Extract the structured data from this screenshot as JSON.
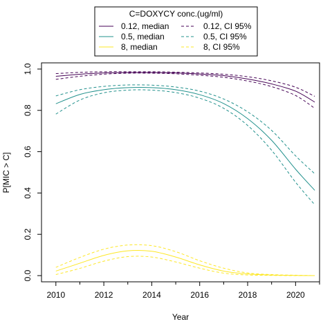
{
  "chart_data": {
    "type": "line",
    "xlabel": "Year",
    "ylabel": "P[MIC > C]",
    "xlim": [
      2009.4,
      2021.0
    ],
    "ylim": [
      -0.03,
      1.03
    ],
    "x_ticks": [
      2010,
      2012,
      2014,
      2016,
      2018,
      2020
    ],
    "x_ticks_labels": [
      "2010",
      "2012",
      "2014",
      "2016",
      "2018",
      "2020"
    ],
    "y_ticks": [
      0.0,
      0.2,
      0.4,
      0.6,
      0.8,
      1.0
    ],
    "y_ticks_labels": [
      "0.0",
      "0.2",
      "0.4",
      "0.6",
      "0.8",
      "1.0"
    ],
    "grid": false,
    "legend": {
      "title": "C=DOXYCY conc.(ug/ml)",
      "placement": "top",
      "entries": [
        {
          "label": "0.12, median",
          "color": "#440154",
          "dash": false
        },
        {
          "label": "0.12, CI 95%",
          "color": "#440154",
          "dash": true
        },
        {
          "label": "0.5, median",
          "color": "#21908C",
          "dash": false
        },
        {
          "label": "0.5, CI 95%",
          "color": "#21908C",
          "dash": true
        },
        {
          "label": "8, median",
          "color": "#FDE725",
          "dash": false
        },
        {
          "label": "8, CI 95%",
          "color": "#FDE725",
          "dash": true
        }
      ]
    },
    "x": [
      2010,
      2011,
      2012,
      2013,
      2014,
      2015,
      2016,
      2017,
      2018,
      2019,
      2020,
      2020.8
    ],
    "series": [
      {
        "name": "0.12, median",
        "color": "#440154",
        "dash": false,
        "values": [
          0.965,
          0.975,
          0.981,
          0.983,
          0.983,
          0.981,
          0.976,
          0.968,
          0.952,
          0.928,
          0.893,
          0.84
        ]
      },
      {
        "name": "0.12, CI 95%",
        "color": "#440154",
        "dash": true,
        "values": [
          0.95,
          0.965,
          0.975,
          0.98,
          0.98,
          0.977,
          0.97,
          0.96,
          0.942,
          0.915,
          0.872,
          0.81
        ]
      },
      {
        "name": "0.12, CI 95%",
        "color": "#440154",
        "dash": true,
        "values": [
          0.978,
          0.984,
          0.987,
          0.987,
          0.987,
          0.985,
          0.981,
          0.975,
          0.963,
          0.943,
          0.912,
          0.868
        ]
      },
      {
        "name": "0.5, median",
        "color": "#21908C",
        "dash": false,
        "values": [
          0.832,
          0.877,
          0.9,
          0.91,
          0.91,
          0.9,
          0.876,
          0.833,
          0.76,
          0.655,
          0.515,
          0.413
        ]
      },
      {
        "name": "0.5, CI 95%",
        "color": "#21908C",
        "dash": true,
        "values": [
          0.782,
          0.85,
          0.885,
          0.898,
          0.898,
          0.886,
          0.859,
          0.81,
          0.727,
          0.607,
          0.452,
          0.343
        ]
      },
      {
        "name": "0.5, CI 95%",
        "color": "#21908C",
        "dash": true,
        "values": [
          0.87,
          0.9,
          0.916,
          0.923,
          0.922,
          0.913,
          0.893,
          0.855,
          0.793,
          0.703,
          0.58,
          0.493
        ]
      },
      {
        "name": "8, median",
        "color": "#FDE725",
        "dash": false,
        "values": [
          0.022,
          0.06,
          0.098,
          0.12,
          0.118,
          0.09,
          0.052,
          0.022,
          0.008,
          0.003,
          0.001,
          0.0
        ]
      },
      {
        "name": "8, CI 95%",
        "color": "#FDE725",
        "dash": true,
        "values": [
          0.005,
          0.035,
          0.07,
          0.092,
          0.09,
          0.066,
          0.036,
          0.012,
          0.003,
          0.001,
          0.0,
          0.0
        ]
      },
      {
        "name": "8, CI 95%",
        "color": "#FDE725",
        "dash": true,
        "values": [
          0.04,
          0.088,
          0.128,
          0.148,
          0.145,
          0.116,
          0.072,
          0.036,
          0.013,
          0.005,
          0.002,
          0.0
        ]
      }
    ]
  }
}
